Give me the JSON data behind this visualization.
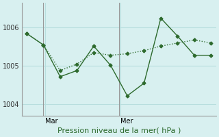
{
  "line_solid_x": [
    0,
    1,
    2,
    3,
    4,
    5,
    6,
    7,
    8,
    9,
    10,
    11
  ],
  "line_solid_y": [
    1005.85,
    1005.55,
    1004.72,
    1004.88,
    1005.52,
    1005.02,
    1004.22,
    1004.55,
    1006.25,
    1005.78,
    1005.28,
    1005.28
  ],
  "line_dotted_x": [
    0,
    1,
    2,
    3,
    4,
    5,
    6,
    7,
    8,
    9,
    10,
    11
  ],
  "line_dotted_y": [
    1005.85,
    1005.55,
    1004.88,
    1005.05,
    1005.35,
    1005.28,
    1005.32,
    1005.4,
    1005.52,
    1005.6,
    1005.68,
    1005.6
  ],
  "color": "#2d6a2d",
  "background": "#d8f0f0",
  "yticks": [
    1004,
    1005,
    1006
  ],
  "ylim": [
    1003.7,
    1006.65
  ],
  "xlim": [
    -0.3,
    11.3
  ],
  "mar_x": 1.0,
  "mer_x": 5.5,
  "xlabel": "Pression niveau de la mer( hPa )",
  "xlabel_fontsize": 8,
  "grid_color": "#b8dede",
  "spine_color": "#999999"
}
